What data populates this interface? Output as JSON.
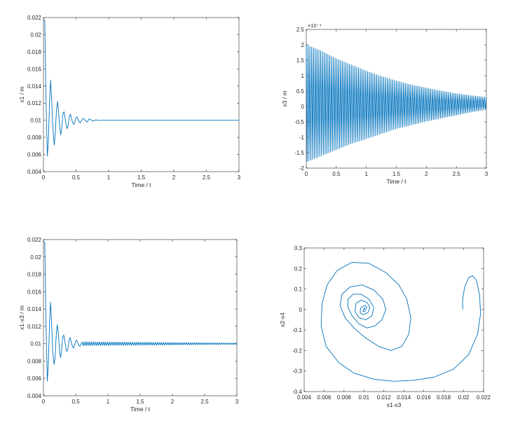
{
  "chart_data": [
    {
      "type": "line",
      "xlabel": "Time / t",
      "ylabel": "x1 / m",
      "xlim": [
        0,
        3
      ],
      "ylim": [
        0.004,
        0.022
      ],
      "xticks": [
        0,
        0.5,
        1,
        1.5,
        2,
        2.5,
        3
      ],
      "xtick_labels": [
        "0",
        "0.5",
        "1",
        "1.5",
        "2",
        "2.5",
        "3"
      ],
      "yticks": [
        0.004,
        0.006,
        0.008,
        0.01,
        0.012,
        0.014,
        0.016,
        0.018,
        0.02,
        0.022
      ],
      "ytick_labels": [
        "0.004",
        "0.006",
        "0.008",
        "0.01",
        "0.012",
        "0.014",
        "0.016",
        "0.018",
        "0.02",
        "0.022"
      ],
      "grid": false,
      "line_color": "#0072BD",
      "series": [
        {
          "x": [
            0,
            0.02,
            0.04,
            0.06,
            0.075,
            0.095,
            0.11,
            0.125,
            0.145,
            0.165,
            0.18,
            0.2,
            0.215,
            0.23,
            0.25,
            0.265,
            0.28,
            0.3,
            0.315,
            0.33,
            0.35,
            0.365,
            0.38,
            0.4,
            0.415,
            0.43,
            0.45,
            0.465,
            0.48,
            0.5,
            0.515,
            0.53,
            0.55,
            0.565,
            0.58,
            0.6,
            0.615,
            0.63,
            0.65,
            0.665,
            0.68,
            0.7,
            0.715,
            0.73,
            0.75,
            0.765,
            0.78,
            0.8,
            0.815,
            0.83,
            0.85,
            0.9,
            1.0,
            1.5,
            2.0,
            2.5,
            3.0
          ],
          "y": [
            0.0217,
            0.0217,
            0.012,
            0.0058,
            0.0075,
            0.0125,
            0.0147,
            0.0125,
            0.009,
            0.0071,
            0.0083,
            0.0112,
            0.0122,
            0.0112,
            0.0092,
            0.0083,
            0.0091,
            0.0108,
            0.011,
            0.0104,
            0.0094,
            0.009,
            0.0095,
            0.0105,
            0.0107,
            0.0102,
            0.0097,
            0.0095,
            0.0098,
            0.0103,
            0.0104,
            0.0101,
            0.0098,
            0.0097,
            0.0099,
            0.0102,
            0.0102,
            0.0101,
            0.0099,
            0.0098,
            0.0099,
            0.01015,
            0.01012,
            0.01005,
            0.00993,
            0.00992,
            0.00997,
            0.01004,
            0.01004,
            0.01001,
            0.00998,
            0.01,
            0.01,
            0.01,
            0.01,
            0.01,
            0.01
          ]
        }
      ]
    },
    {
      "type": "line",
      "xlabel": "Time / t",
      "ylabel": "x3 / m",
      "exponent_label": "×10⁻⁴",
      "xlim": [
        0,
        3
      ],
      "ylim": [
        -2,
        2.5
      ],
      "xticks": [
        0,
        0.5,
        1,
        1.5,
        2,
        2.5,
        3
      ],
      "xtick_labels": [
        "0",
        "0.5",
        "1",
        "1.5",
        "2",
        "2.5",
        "3"
      ],
      "yticks": [
        -2,
        -1.5,
        -1,
        -0.5,
        0,
        0.5,
        1,
        1.5,
        2,
        2.5
      ],
      "ytick_labels": [
        "-2",
        "-1.5",
        "-1",
        "-0.5",
        "0",
        "0.5",
        "1",
        "1.5",
        "2",
        "2.5"
      ],
      "grid": false,
      "line_color": "#0072BD",
      "series": [
        {
          "x": [
            0,
            0.25,
            0.5,
            0.75,
            1.0,
            1.25,
            1.5,
            1.75,
            2.0,
            2.25,
            2.5,
            2.75,
            3.0
          ],
          "upper": [
            2.0,
            1.8,
            1.55,
            1.35,
            1.15,
            0.98,
            0.83,
            0.7,
            0.6,
            0.5,
            0.42,
            0.35,
            0.3
          ],
          "lower": [
            -1.8,
            -1.6,
            -1.4,
            -1.2,
            -1.05,
            -0.88,
            -0.72,
            -0.6,
            -0.48,
            -0.38,
            -0.28,
            -0.18,
            -0.1
          ],
          "cycles": 100
        }
      ]
    },
    {
      "type": "line",
      "xlabel": "Time / t",
      "ylabel": "x1-x3 / m",
      "xlim": [
        0,
        3
      ],
      "ylim": [
        0.004,
        0.022
      ],
      "xticks": [
        0,
        0.5,
        1,
        1.5,
        2,
        2.5,
        3
      ],
      "xtick_labels": [
        "0",
        "0.5",
        "1",
        "1.5",
        "2",
        "2.5",
        "3"
      ],
      "yticks": [
        0.004,
        0.006,
        0.008,
        0.01,
        0.012,
        0.014,
        0.016,
        0.018,
        0.02,
        0.022
      ],
      "ytick_labels": [
        "0.004",
        "0.006",
        "0.008",
        "0.01",
        "0.012",
        "0.014",
        "0.016",
        "0.018",
        "0.02",
        "0.022"
      ],
      "grid": false,
      "line_color": "#0072BD",
      "series": [
        {
          "x": [
            0,
            0.02,
            0.04,
            0.06,
            0.075,
            0.095,
            0.11,
            0.125,
            0.145,
            0.165,
            0.18,
            0.2,
            0.215,
            0.23,
            0.25,
            0.265,
            0.28,
            0.3,
            0.315,
            0.33,
            0.35,
            0.365,
            0.38,
            0.4,
            0.415,
            0.43,
            0.45,
            0.465,
            0.48,
            0.5,
            0.515,
            0.53,
            0.55,
            0.565,
            0.58,
            0.6
          ],
          "y": [
            0.0217,
            0.0217,
            0.012,
            0.0057,
            0.0075,
            0.0125,
            0.0148,
            0.0125,
            0.009,
            0.0076,
            0.0083,
            0.0112,
            0.0122,
            0.0112,
            0.0092,
            0.0084,
            0.0091,
            0.0108,
            0.011,
            0.0104,
            0.0094,
            0.0091,
            0.0095,
            0.0105,
            0.0107,
            0.0102,
            0.0097,
            0.0095,
            0.0098,
            0.0103,
            0.0104,
            0.0101,
            0.0098,
            0.0097,
            0.0099,
            0.0102
          ],
          "tail_oscillation": {
            "start": 0.6,
            "end": 3.0,
            "center": 0.01,
            "amplitude_start": 0.00022,
            "amplitude_end": 8e-05,
            "cycles": 80
          }
        }
      ]
    },
    {
      "type": "line",
      "xlabel": "x1-x3",
      "ylabel": "x2-x4",
      "xlim": [
        0.004,
        0.022
      ],
      "ylim": [
        -0.4,
        0.3
      ],
      "xticks": [
        0.004,
        0.006,
        0.008,
        0.01,
        0.012,
        0.014,
        0.016,
        0.018,
        0.02,
        0.022
      ],
      "xtick_labels": [
        "0.004",
        "0.006",
        "0.008",
        "0.01",
        "0.012",
        "0.014",
        "0.016",
        "0.018",
        "0.02",
        "0.022"
      ],
      "yticks": [
        -0.4,
        -0.3,
        -0.2,
        -0.1,
        0,
        0.1,
        0.2,
        0.3
      ],
      "ytick_labels": [
        "-0.4",
        "-0.3",
        "-0.2",
        "-0.1",
        "0",
        "0.1",
        "0.2",
        "0.3"
      ],
      "grid": false,
      "line_color": "#0072BD",
      "series": [
        {
          "x": [
            0.0199,
            0.0199,
            0.0201,
            0.0205,
            0.0209,
            0.0213,
            0.0216,
            0.0217,
            0.0214,
            0.0205,
            0.019,
            0.017,
            0.015,
            0.013,
            0.011,
            0.009,
            0.0075,
            0.0062,
            0.0057,
            0.0058,
            0.0063,
            0.0073,
            0.0088,
            0.0105,
            0.0122,
            0.0135,
            0.0143,
            0.0147,
            0.0145,
            0.0138,
            0.0127,
            0.0115,
            0.0102,
            0.009,
            0.0081,
            0.0076,
            0.0078,
            0.0086,
            0.0098,
            0.011,
            0.0119,
            0.0122,
            0.0118,
            0.0111,
            0.0103,
            0.0095,
            0.0088,
            0.0084,
            0.0084,
            0.0089,
            0.0097,
            0.0105,
            0.011,
            0.0108,
            0.0102,
            0.0095,
            0.0091,
            0.0092,
            0.0097,
            0.0103,
            0.0106,
            0.0104,
            0.0099,
            0.0096,
            0.0097,
            0.0101,
            0.0103,
            0.0101,
            0.0099,
            0.01,
            0.0101,
            0.01
          ],
          "y": [
            0.0,
            0.05,
            0.11,
            0.155,
            0.165,
            0.14,
            0.07,
            -0.02,
            -0.12,
            -0.22,
            -0.29,
            -0.33,
            -0.345,
            -0.35,
            -0.34,
            -0.31,
            -0.26,
            -0.18,
            -0.08,
            0.03,
            0.12,
            0.19,
            0.23,
            0.225,
            0.18,
            0.12,
            0.05,
            -0.04,
            -0.12,
            -0.18,
            -0.2,
            -0.18,
            -0.14,
            -0.09,
            -0.04,
            0.02,
            0.075,
            0.11,
            0.12,
            0.095,
            0.05,
            0.0,
            -0.05,
            -0.08,
            -0.09,
            -0.07,
            -0.03,
            0.01,
            0.05,
            0.075,
            0.075,
            0.05,
            0.01,
            -0.03,
            -0.05,
            -0.04,
            -0.01,
            0.03,
            0.045,
            0.035,
            0.01,
            -0.015,
            -0.025,
            -0.015,
            0.01,
            0.02,
            0.01,
            -0.008,
            -0.01,
            0.005,
            0.008,
            0.0
          ]
        }
      ]
    }
  ]
}
